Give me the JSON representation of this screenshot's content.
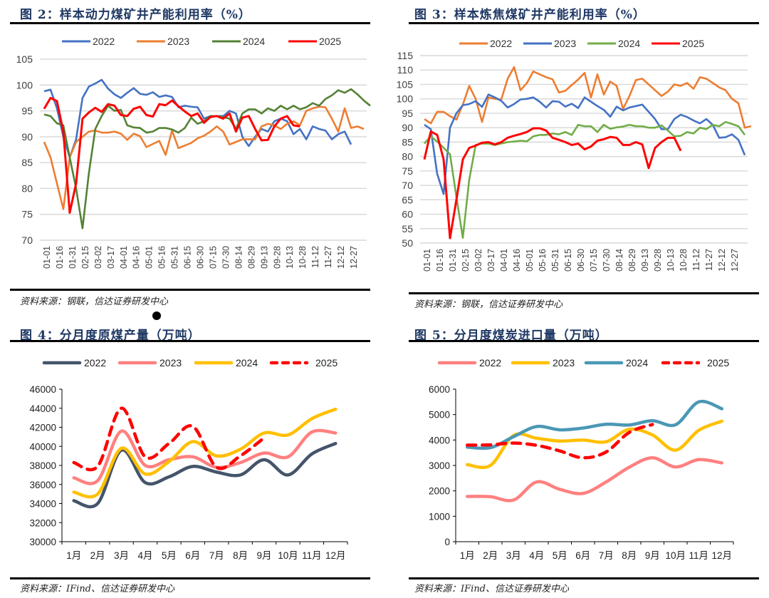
{
  "figures": [
    {
      "title": "图 2：样本动力煤矿井产能利用率（%）",
      "source": "资料来源：钢联，信达证券研发中心"
    },
    {
      "title": "图 3：样本炼焦煤矿井产能利用率（%）",
      "source": "资料来源：钢联，信达证券研发中心"
    },
    {
      "title": "图 4：分月度原煤产量（万吨）",
      "source": "资料来源：IFind、信达证券研发中心"
    },
    {
      "title": "图 5：分月度煤炭进口量（万吨）",
      "source": "资料来源：IFind、信达证券研发中心"
    }
  ],
  "chart_data": [
    {
      "type": "line",
      "title": "样本动力煤矿井产能利用率（%）",
      "xlabel": "",
      "ylabel": "",
      "ylim": [
        70,
        105
      ],
      "yticks": [
        70,
        75,
        80,
        85,
        90,
        95,
        100,
        105
      ],
      "grid": true,
      "legend": "top",
      "x_tick_labels": [
        "01-01",
        "01-16",
        "01-31",
        "02-15",
        "03-02",
        "03-17",
        "04-01",
        "04-16",
        "05-01",
        "05-16",
        "05-31",
        "06-15",
        "06-30",
        "07-15",
        "07-30",
        "08-14",
        "08-29",
        "09-13",
        "09-28",
        "10-13",
        "10-28",
        "11-12",
        "11-27",
        "12-12",
        "12-27"
      ],
      "points_per_label": 2,
      "series": [
        {
          "name": "2022",
          "color": "#4472c4",
          "values": [
            98.8,
            99.1,
            95.5,
            90,
            86,
            89.5,
            97.5,
            99.7,
            100.3,
            101,
            99.3,
            98.2,
            97.5,
            98.5,
            99.4,
            98.3,
            98.1,
            98.6,
            97.7,
            98,
            97.7,
            95.7,
            96,
            95.8,
            95.7,
            93.5,
            94,
            94,
            94,
            95,
            94.5,
            90,
            88.2,
            90,
            91.5,
            91,
            93,
            93.5,
            93,
            90.5,
            91.5,
            89.5,
            92,
            91.5,
            91.2,
            89.5,
            90.5,
            91,
            88.5
          ]
        },
        {
          "name": "2023",
          "color": "#ed7d31",
          "values": [
            89,
            86,
            81,
            76,
            86,
            89,
            90,
            91,
            91.2,
            90.8,
            90.8,
            91,
            90.6,
            89.4,
            90.6,
            90.1,
            88,
            88.6,
            89.2,
            86.5,
            91.2,
            87.8,
            88.3,
            88.8,
            89.7,
            90.2,
            91,
            92,
            91,
            88.5,
            89,
            89.5,
            89.5,
            89.5,
            92,
            92.5,
            92.2,
            91.5,
            92.5,
            93,
            92.2,
            95,
            95.5,
            95.8,
            95.7,
            93.5,
            91,
            95.5,
            91.7,
            92,
            91.5
          ]
        },
        {
          "name": "2024",
          "color": "#548235",
          "values": [
            94.3,
            94,
            92.6,
            92.2,
            86,
            80,
            72.3,
            83,
            91.5,
            94,
            96,
            95,
            95.2,
            92.2,
            91.8,
            91.7,
            90.8,
            91,
            91.7,
            91.7,
            91.4,
            90.8,
            91.7,
            93.7,
            92.5,
            93,
            94,
            94,
            93.8,
            93.5,
            91.5,
            94.5,
            95.3,
            95.3,
            94.5,
            95.5,
            95,
            96,
            95.3,
            96,
            95.3,
            95.7,
            96.5,
            96,
            97.3,
            98,
            99,
            98.5,
            99.2,
            98.2,
            97,
            96
          ]
        },
        {
          "name": "2025",
          "color": "#ff0000",
          "values": [
            95.4,
            97.5,
            96.9,
            91,
            75.3,
            81,
            93.5,
            94.7,
            95.6,
            94.8,
            96.3,
            96,
            94.2,
            94,
            95.4,
            95.8,
            94.2,
            93.9,
            96.3,
            96.1,
            97,
            95.9,
            94.9,
            94,
            94.5,
            92.7,
            93.8,
            94,
            93.5,
            94.5,
            91,
            93.7,
            94,
            91.5,
            89.3,
            89.4,
            92,
            93.5,
            94,
            92.2,
            92
          ]
        }
      ]
    },
    {
      "type": "line",
      "title": "样本炼焦煤矿井产能利用率（%）",
      "xlabel": "",
      "ylabel": "",
      "ylim": [
        50,
        115
      ],
      "yticks": [
        50,
        55,
        60,
        65,
        70,
        75,
        80,
        85,
        90,
        95,
        100,
        105,
        110,
        115
      ],
      "grid": true,
      "legend": "top",
      "x_tick_labels": [
        "01-01",
        "01-16",
        "01-31",
        "02-15",
        "03-02",
        "03-17",
        "04-01",
        "04-16",
        "05-01",
        "05-16",
        "05-31",
        "06-15",
        "06-30",
        "07-15",
        "07-30",
        "08-14",
        "08-29",
        "09-13",
        "09-28",
        "10-13",
        "10-28",
        "11-12",
        "11-27",
        "12-12",
        "12-27"
      ],
      "points_per_label": 2,
      "series": [
        {
          "name": "2022",
          "color": "#ed7d31",
          "values": [
            93,
            91.5,
            95.5,
            95.5,
            94,
            92.8,
            98,
            104.5,
            100,
            92,
            100.5,
            100,
            99.8,
            107,
            111,
            103,
            105.5,
            109.5,
            108.5,
            107.5,
            106.8,
            102.2,
            102.8,
            104.8,
            106.7,
            109,
            100.5,
            108.5,
            101.5,
            106,
            104.5,
            96.5,
            101,
            106.5,
            107,
            105,
            103,
            101,
            102.5,
            105,
            104.5,
            105.5,
            103.5,
            107.5,
            107,
            105.5,
            104,
            103,
            100,
            98.5,
            90,
            90.5
          ]
        },
        {
          "name": "2023",
          "color": "#4472c4",
          "values": [
            91,
            89.5,
            74,
            67,
            90,
            95,
            97.8,
            98.2,
            99.2,
            97.2,
            101.5,
            100.5,
            99.3,
            97,
            98.2,
            99.8,
            100,
            100.5,
            99,
            97,
            99.2,
            99,
            97.3,
            98.3,
            96.8,
            100.5,
            99,
            97.5,
            96.2,
            93.8,
            97.3,
            96,
            97,
            97.5,
            98,
            95.5,
            93,
            89.5,
            89.5,
            93,
            94.5,
            93.7,
            92.5,
            91.5,
            93,
            91,
            86.5,
            86.7,
            87.7,
            85.8,
            80.5
          ]
        },
        {
          "name": "2024",
          "color": "#70ad47",
          "values": [
            84.5,
            87,
            85.2,
            83,
            80.8,
            66,
            51.8,
            72,
            84,
            84.5,
            84.5,
            84,
            84.5,
            85,
            85.2,
            85.5,
            85.3,
            87,
            87.5,
            87.5,
            88,
            87.7,
            88.5,
            87.5,
            91,
            90.5,
            90.5,
            88.5,
            91,
            89.6,
            90.1,
            90.4,
            91,
            90.5,
            90.5,
            90,
            90,
            90.8,
            89,
            87,
            87.2,
            88.5,
            88,
            90,
            89.5,
            91,
            90.5,
            92,
            91.3,
            90.5,
            87.5
          ]
        },
        {
          "name": "2025",
          "color": "#ff0000",
          "values": [
            79,
            88.7,
            87.5,
            79,
            51.7,
            65,
            79,
            83,
            83.8,
            84.8,
            85,
            84.2,
            85,
            86.5,
            87.2,
            87.8,
            88.5,
            89.8,
            89.8,
            89,
            86.5,
            85.8,
            85,
            84,
            84.5,
            82.5,
            83.5,
            85.5,
            86,
            86.8,
            86.5,
            84,
            84,
            85,
            84.2,
            76,
            83,
            85,
            86.5,
            86.5,
            82
          ]
        }
      ]
    },
    {
      "type": "line",
      "title": "分月度原煤产量（万吨）",
      "xlabel": "",
      "ylabel": "",
      "ylim": [
        30000,
        46000
      ],
      "yticks": [
        30000,
        32000,
        34000,
        36000,
        38000,
        40000,
        42000,
        44000,
        46000
      ],
      "grid": false,
      "legend": "top",
      "categories": [
        "1月",
        "2月",
        "3月",
        "4月",
        "5月",
        "6月",
        "7月",
        "8月",
        "9月",
        "10月",
        "11月",
        "12月"
      ],
      "series": [
        {
          "name": "2022",
          "color": "#44546a",
          "dash": false,
          "values": [
            34300,
            34000,
            39600,
            36200,
            36800,
            37900,
            37300,
            37000,
            38600,
            37000,
            39200,
            40300
          ]
        },
        {
          "name": "2023",
          "color": "#ff8080",
          "dash": false,
          "values": [
            36700,
            36400,
            41600,
            38000,
            38600,
            38900,
            37800,
            38300,
            39300,
            38900,
            41500,
            41400
          ]
        },
        {
          "name": "2024",
          "color": "#ffc000",
          "dash": false,
          "values": [
            35200,
            35000,
            39800,
            37100,
            38400,
            40500,
            39000,
            39700,
            41400,
            41200,
            42900,
            43900
          ]
        },
        {
          "name": "2025",
          "color": "#ff0000",
          "dash": true,
          "values": [
            38300,
            37900,
            44000,
            38900,
            40300,
            42100,
            37800,
            39000,
            40900
          ]
        }
      ]
    },
    {
      "type": "line",
      "title": "分月度煤炭进口量（万吨）",
      "xlabel": "",
      "ylabel": "",
      "ylim": [
        0,
        6000
      ],
      "yticks": [
        0,
        1000,
        2000,
        3000,
        4000,
        5000,
        6000
      ],
      "grid": false,
      "legend": "top",
      "categories": [
        "1月",
        "2月",
        "3月",
        "4月",
        "5月",
        "6月",
        "7月",
        "8月",
        "9月",
        "10月",
        "11月",
        "12月"
      ],
      "series": [
        {
          "name": "2022",
          "color": "#ff8080",
          "dash": false,
          "values": [
            1780,
            1770,
            1640,
            2350,
            2060,
            1900,
            2350,
            2930,
            3300,
            2940,
            3230,
            3100
          ]
        },
        {
          "name": "2023",
          "color": "#ffc000",
          "dash": false,
          "values": [
            3030,
            3000,
            4180,
            4070,
            3960,
            4000,
            3930,
            4420,
            4200,
            3600,
            4380,
            4740
          ]
        },
        {
          "name": "2024",
          "color": "#4a98b5",
          "dash": false,
          "values": [
            3720,
            3700,
            4130,
            4530,
            4400,
            4470,
            4620,
            4590,
            4760,
            4600,
            5500,
            5230
          ]
        },
        {
          "name": "2025",
          "color": "#ff0000",
          "dash": true,
          "values": [
            3800,
            3810,
            3880,
            3790,
            3570,
            3300,
            3530,
            4300,
            4610
          ]
        }
      ]
    }
  ]
}
